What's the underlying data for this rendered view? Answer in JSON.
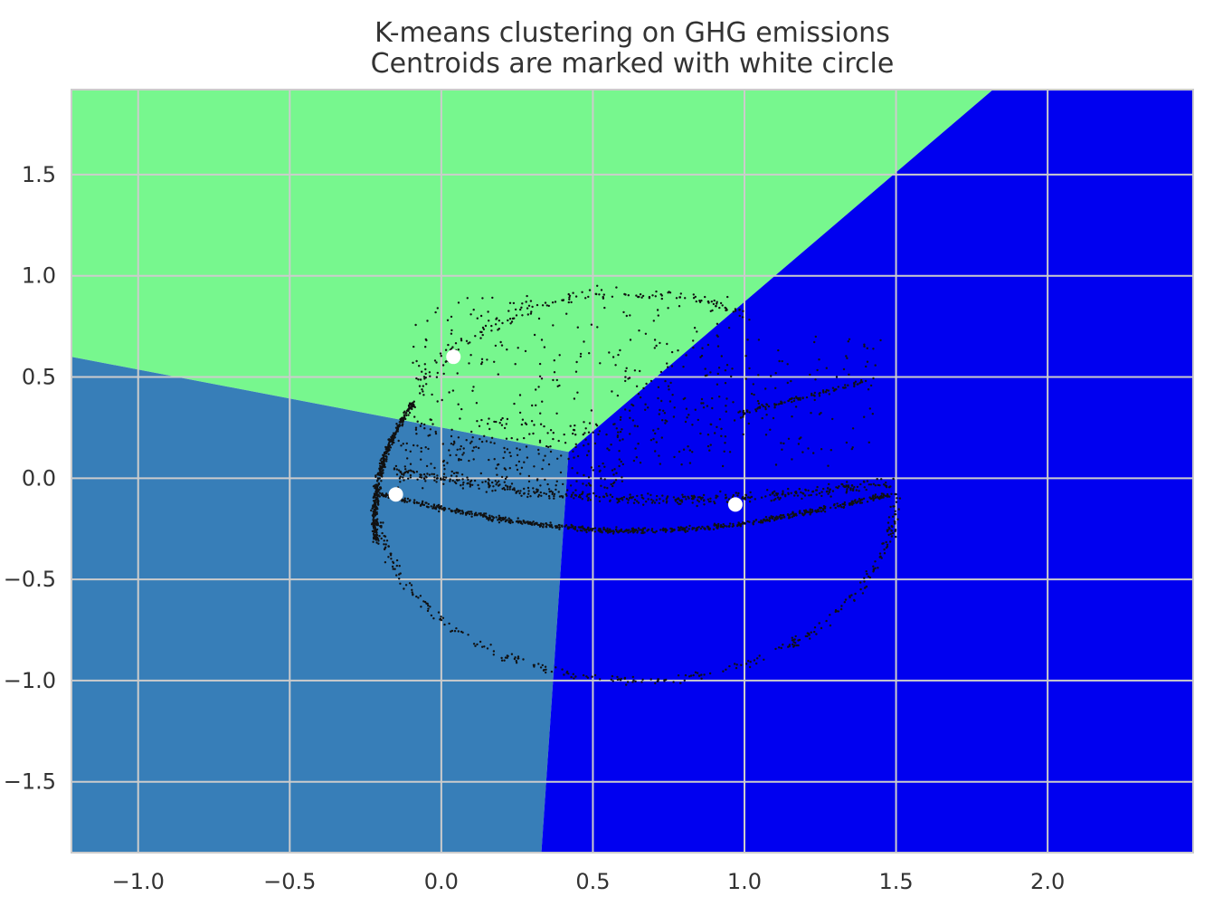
{
  "chart_data": {
    "type": "scatter",
    "title": "K-means clustering on GHG emissions",
    "subtitle": "Centroids are marked with white circle",
    "xlabel": "",
    "ylabel": "",
    "xlim": [
      -1.22,
      2.48
    ],
    "ylim": [
      -1.85,
      1.92
    ],
    "xticks": [
      -1.0,
      -0.5,
      0.0,
      0.5,
      1.0,
      1.5,
      2.0
    ],
    "xtick_labels": [
      "−1.0",
      "−0.5",
      "0.0",
      "0.5",
      "1.0",
      "1.5",
      "2.0"
    ],
    "yticks": [
      -1.5,
      -1.0,
      -0.5,
      0.0,
      0.5,
      1.0,
      1.5
    ],
    "ytick_labels": [
      "−1.5",
      "−1.0",
      "−0.5",
      "0.0",
      "0.5",
      "1.0",
      "1.5"
    ],
    "grid": true,
    "colors": {
      "region_green": "#77f78e",
      "region_steel": "#377eb8",
      "region_blue": "#0000f0",
      "points": "#111111",
      "centroid": "#ffffff",
      "grid": "#cccccc"
    },
    "regions": [
      {
        "color": "region_green",
        "vertices": [
          [
            -1.22,
            1.92
          ],
          [
            1.82,
            1.92
          ],
          [
            0.42,
            0.13
          ],
          [
            -1.22,
            0.6
          ]
        ]
      },
      {
        "color": "region_steel",
        "vertices": [
          [
            -1.22,
            0.6
          ],
          [
            0.42,
            0.13
          ],
          [
            0.33,
            -1.85
          ],
          [
            -1.22,
            -1.85
          ]
        ]
      },
      {
        "color": "region_blue",
        "vertices": [
          [
            1.82,
            1.92
          ],
          [
            2.48,
            1.92
          ],
          [
            2.48,
            -1.85
          ],
          [
            0.33,
            -1.85
          ],
          [
            0.42,
            0.13
          ]
        ]
      }
    ],
    "centroids": [
      {
        "x": 0.04,
        "y": 0.6
      },
      {
        "x": -0.15,
        "y": -0.08
      },
      {
        "x": 0.97,
        "y": -0.13
      }
    ],
    "point_clouds": [
      {
        "shape": "arc",
        "center": [
          0.62,
          -0.2
        ],
        "rx": 0.84,
        "ry": 1.08,
        "theta_start": 148,
        "theta_end": 186,
        "count": 420,
        "jitter": 0.015
      },
      {
        "shape": "arc",
        "center": [
          0.62,
          -0.08
        ],
        "rx": 0.82,
        "ry": 1.0,
        "theta_start": 60,
        "theta_end": 150,
        "count": 160,
        "jitter": 0.05
      },
      {
        "shape": "arc",
        "center": [
          0.64,
          -0.08
        ],
        "rx": 0.86,
        "ry": 0.92,
        "theta_start": 188,
        "theta_end": 360,
        "count": 320,
        "jitter": 0.03
      },
      {
        "shape": "band",
        "from": [
          -0.2,
          -0.08
        ],
        "to": [
          1.48,
          -0.08
        ],
        "sag": 0.18,
        "count": 700,
        "jitter": 0.02
      },
      {
        "shape": "band",
        "from": [
          -0.18,
          0.05
        ],
        "to": [
          1.48,
          -0.02
        ],
        "sag": 0.12,
        "count": 420,
        "jitter": 0.04
      },
      {
        "shape": "band",
        "from": [
          0.98,
          0.32
        ],
        "to": [
          1.4,
          0.48
        ],
        "sag": 0.0,
        "count": 90,
        "jitter": 0.02
      },
      {
        "shape": "scatter",
        "xrange": [
          -0.1,
          0.95
        ],
        "yrange": [
          0.1,
          0.9
        ],
        "count": 230
      },
      {
        "shape": "scatter",
        "xrange": [
          0.6,
          1.45
        ],
        "yrange": [
          0.05,
          0.7
        ],
        "count": 170
      },
      {
        "shape": "scatter",
        "xrange": [
          -0.15,
          0.6
        ],
        "yrange": [
          -0.05,
          0.3
        ],
        "count": 260
      }
    ]
  }
}
